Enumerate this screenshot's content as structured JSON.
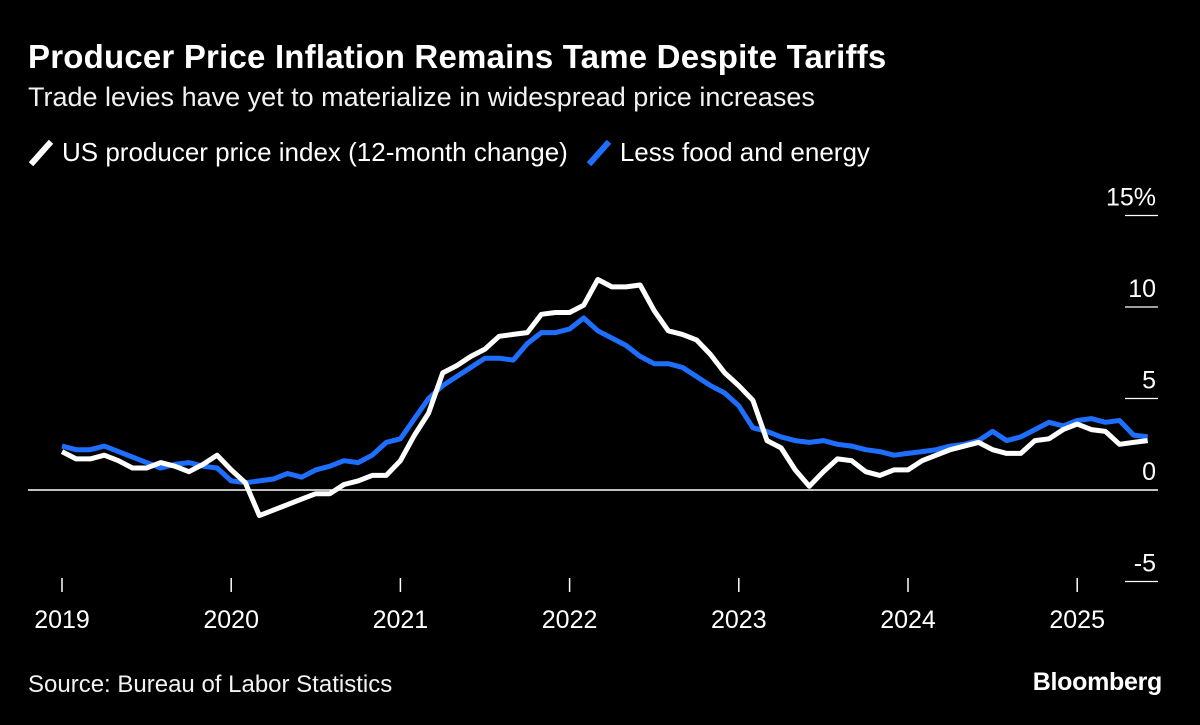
{
  "header": {
    "title": "Producer Price Inflation Remains Tame Despite Tariffs",
    "subtitle": "Trade levies have yet to materialize in widespread price increases"
  },
  "legend": {
    "items": [
      {
        "label": "US producer price index (12-month change)",
        "color": "#ffffff"
      },
      {
        "label": "Less food and energy",
        "color": "#1f6fff"
      }
    ]
  },
  "footer": {
    "source": "Source: Bureau of Labor Statistics",
    "brand": "Bloomberg"
  },
  "chart_data": {
    "type": "line",
    "title": "Producer Price Inflation Remains Tame Despite Tariffs",
    "subtitle": "Trade levies have yet to materialize in widespread price increases",
    "xlabel": "",
    "ylabel": "",
    "ylim": [
      -5,
      15
    ],
    "y_ticks": [
      -5,
      0,
      5,
      10,
      15
    ],
    "y_tick_labels": [
      "-5",
      "0",
      "5",
      "10",
      "15%"
    ],
    "x_ticks": [
      "2019",
      "2020",
      "2021",
      "2022",
      "2023",
      "2024",
      "2025"
    ],
    "grid": false,
    "legend_position": "top-left",
    "x": [
      "2019-01",
      "2019-02",
      "2019-03",
      "2019-04",
      "2019-05",
      "2019-06",
      "2019-07",
      "2019-08",
      "2019-09",
      "2019-10",
      "2019-11",
      "2019-12",
      "2020-01",
      "2020-02",
      "2020-03",
      "2020-04",
      "2020-05",
      "2020-06",
      "2020-07",
      "2020-08",
      "2020-09",
      "2020-10",
      "2020-11",
      "2020-12",
      "2021-01",
      "2021-02",
      "2021-03",
      "2021-04",
      "2021-05",
      "2021-06",
      "2021-07",
      "2021-08",
      "2021-09",
      "2021-10",
      "2021-11",
      "2021-12",
      "2022-01",
      "2022-02",
      "2022-03",
      "2022-04",
      "2022-05",
      "2022-06",
      "2022-07",
      "2022-08",
      "2022-09",
      "2022-10",
      "2022-11",
      "2022-12",
      "2023-01",
      "2023-02",
      "2023-03",
      "2023-04",
      "2023-05",
      "2023-06",
      "2023-07",
      "2023-08",
      "2023-09",
      "2023-10",
      "2023-11",
      "2023-12",
      "2024-01",
      "2024-02",
      "2024-03",
      "2024-04",
      "2024-05",
      "2024-06",
      "2024-07",
      "2024-08",
      "2024-09",
      "2024-10",
      "2024-11",
      "2024-12",
      "2025-01",
      "2025-02",
      "2025-03",
      "2025-04",
      "2025-05",
      "2025-06"
    ],
    "series": [
      {
        "name": "US producer price index (12-month change)",
        "color": "#ffffff",
        "values": [
          2.1,
          1.7,
          1.7,
          1.9,
          1.6,
          1.2,
          1.2,
          1.5,
          1.3,
          1.0,
          1.4,
          1.9,
          1.1,
          0.4,
          -1.4,
          -1.1,
          -0.8,
          -0.5,
          -0.2,
          -0.2,
          0.3,
          0.5,
          0.8,
          0.8,
          1.6,
          3.0,
          4.2,
          6.4,
          6.8,
          7.3,
          7.7,
          8.4,
          8.5,
          8.6,
          9.6,
          9.7,
          9.7,
          10.1,
          11.5,
          11.1,
          11.1,
          11.2,
          9.8,
          8.7,
          8.5,
          8.2,
          7.4,
          6.4,
          5.7,
          4.9,
          2.7,
          2.3,
          1.1,
          0.2,
          1.0,
          1.7,
          1.6,
          1.0,
          0.8,
          1.1,
          1.1,
          1.6,
          1.9,
          2.2,
          2.4,
          2.6,
          2.2,
          2.0,
          2.0,
          2.7,
          2.8,
          3.3,
          3.6,
          3.3,
          3.2,
          2.5,
          2.6,
          2.7
        ]
      },
      {
        "name": "Less food and energy",
        "color": "#1f6fff",
        "values": [
          2.4,
          2.2,
          2.2,
          2.4,
          2.1,
          1.8,
          1.5,
          1.2,
          1.4,
          1.5,
          1.3,
          1.2,
          0.5,
          0.4,
          0.5,
          0.6,
          0.9,
          0.7,
          1.1,
          1.3,
          1.6,
          1.5,
          1.9,
          2.6,
          2.8,
          3.9,
          5.0,
          5.7,
          6.2,
          6.7,
          7.2,
          7.2,
          7.1,
          8.0,
          8.6,
          8.6,
          8.8,
          9.4,
          8.7,
          8.3,
          7.9,
          7.3,
          6.9,
          6.9,
          6.7,
          6.2,
          5.7,
          5.3,
          4.6,
          3.4,
          3.2,
          2.9,
          2.7,
          2.6,
          2.7,
          2.5,
          2.4,
          2.2,
          2.1,
          1.9,
          2.0,
          2.1,
          2.2,
          2.4,
          2.5,
          2.7,
          3.2,
          2.7,
          2.9,
          3.3,
          3.7,
          3.5,
          3.8,
          3.9,
          3.7,
          3.8,
          3.0,
          2.9
        ]
      }
    ]
  }
}
